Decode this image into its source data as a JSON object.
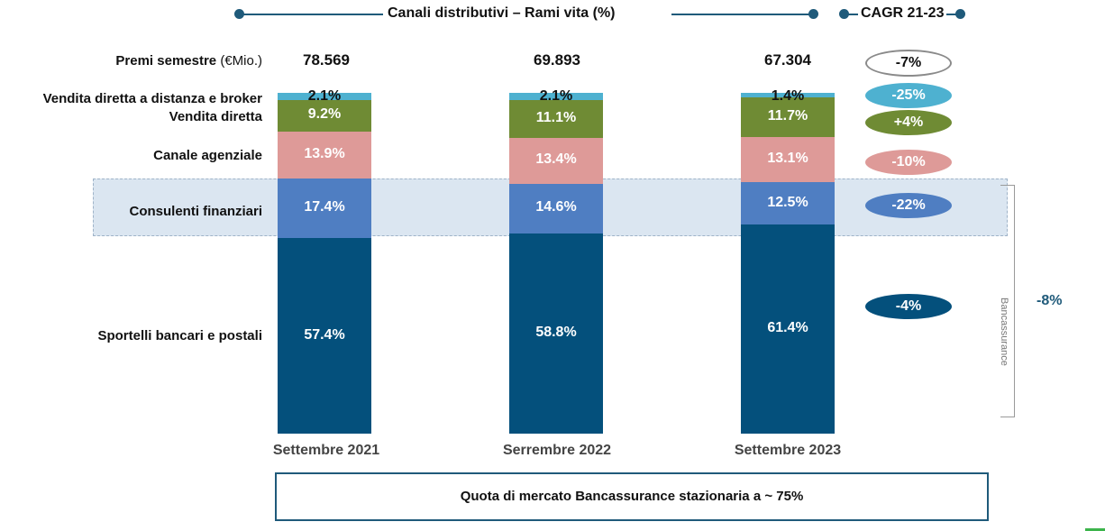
{
  "header": {
    "title": "Canali distributivi – Rami vita (%)",
    "cagr_title": "CAGR 21-23"
  },
  "premi": {
    "label": "Premi semestre",
    "unit": "(€Mio.)",
    "values": [
      "78.569",
      "69.893",
      "67.304"
    ],
    "cagr": "-7%"
  },
  "chart_data": {
    "type": "bar",
    "stacked": true,
    "categories": [
      "Settembre 2021",
      "Serrembre 2022",
      "Settembre 2023"
    ],
    "series": [
      {
        "name": "Sportelli bancari e postali",
        "values": [
          57.4,
          58.8,
          61.4
        ],
        "color": "#04507c",
        "text_color": "#ffffff",
        "cagr": "-4%"
      },
      {
        "name": "Consulenti finanziari",
        "values": [
          17.4,
          14.6,
          12.5
        ],
        "color": "#4f7ec2",
        "text_color": "#ffffff",
        "cagr": "-22%"
      },
      {
        "name": "Canale agenziale",
        "values": [
          13.9,
          13.4,
          13.1
        ],
        "color": "#de9a98",
        "text_color": "#ffffff",
        "cagr": "-10%"
      },
      {
        "name": "Vendita diretta",
        "values": [
          9.2,
          11.1,
          11.7
        ],
        "color": "#6f8b34",
        "text_color": "#ffffff",
        "cagr": "+4%"
      },
      {
        "name": "Vendita diretta a distanza e broker",
        "values": [
          2.1,
          2.1,
          1.4
        ],
        "color": "#4eb1d0",
        "text_color": "#111111",
        "cagr": "-25%"
      }
    ],
    "labels": [
      "57.4%",
      "58.8%",
      "61.4%",
      "17.4%",
      "14.6%",
      "12.5%",
      "13.9%",
      "13.4%",
      "13.1%",
      "9.2%",
      "11.1%",
      "11.7%",
      "2.1%",
      "2.1%",
      "1.4%"
    ],
    "ylim": [
      0,
      100
    ]
  },
  "bancassurance": {
    "label": "Bancassurance",
    "cagr": "-8%"
  },
  "footer": {
    "text": "Quota di mercato Bancassurance stazionaria a ~ 75%"
  }
}
